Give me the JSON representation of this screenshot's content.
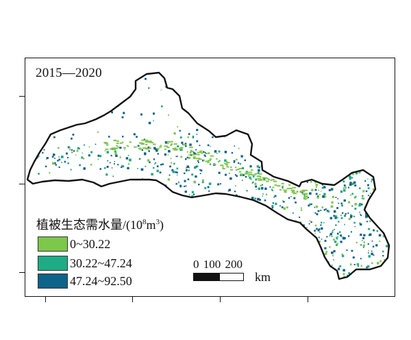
{
  "map": {
    "period_label": "2015—2020",
    "legend": {
      "title_text": "植被生态需水量/(10",
      "title_sup1": "8",
      "title_unit_mid": "m",
      "title_sup2": "3",
      "title_close": ")",
      "items": [
        {
          "label": "0~30.22",
          "color": "#7cc84a"
        },
        {
          "label": "30.22~47.24",
          "color": "#1fab86"
        },
        {
          "label": "47.24~92.50",
          "color": "#0e6389"
        }
      ]
    },
    "scale_bar": {
      "numbers": "0 100 200",
      "unit": "km"
    },
    "colors": {
      "boundary": "#111111",
      "class_low": "#7cc84a",
      "class_mid": "#1fab86",
      "class_high": "#0e6389"
    }
  }
}
